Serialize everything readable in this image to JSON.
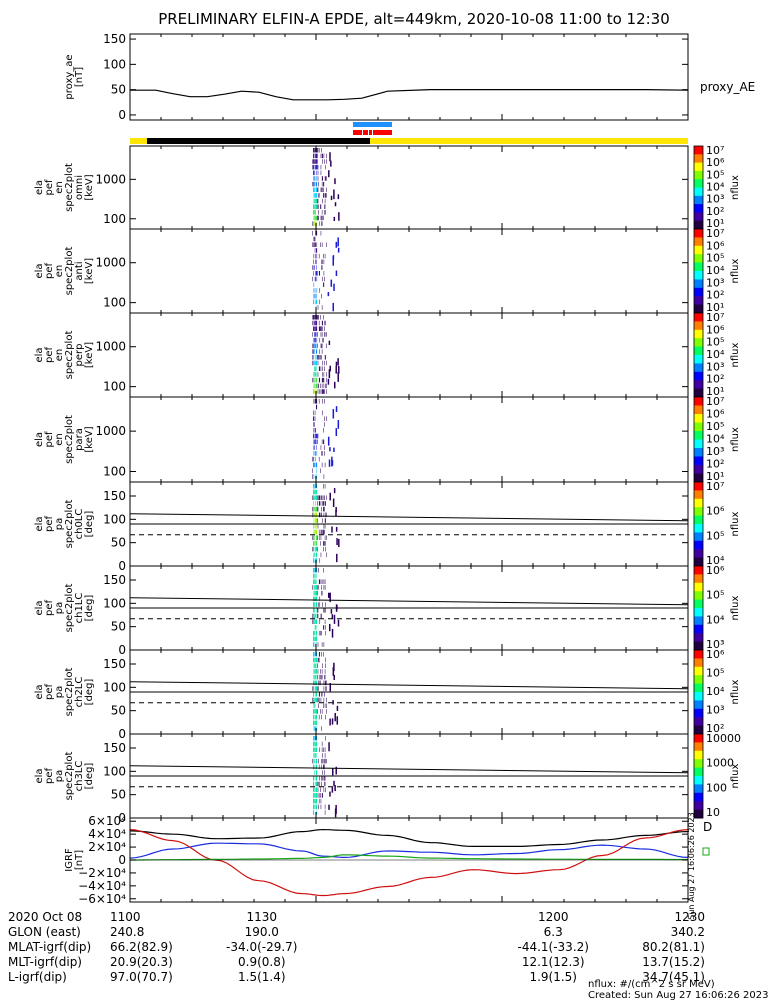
{
  "title": "PRELIMINARY ELFIN-A EPDE, alt=449km, 2020-10-08 11:00 to 12:30",
  "colors": {
    "fg": "#000000",
    "bar_yellow": "#ffe600",
    "bar_black": "#000000",
    "bar_blue": "#1e90ff",
    "bar_red": "#ff0000",
    "grf_x": "#000000",
    "grf_y": "#1a2ee0",
    "grf_z": "#d01010",
    "grf_w": "#18a818"
  },
  "chart_data": [
    {
      "type": "line",
      "name": "proxy_ae",
      "ylabel": [
        "proxy_ae",
        "[nT]"
      ],
      "yticks": [
        "150",
        "100",
        "50",
        "0"
      ],
      "ytick_values": [
        150,
        100,
        50,
        0
      ],
      "ylim": [
        -10,
        160
      ],
      "xlim": [
        1100,
        1230
      ],
      "legend": "proxy_AE",
      "x": [
        1100,
        1106,
        1110,
        1114,
        1118,
        1122,
        1126,
        1130,
        1134,
        1138,
        1142,
        1146,
        1150,
        1154,
        1160,
        1170,
        1180,
        1190,
        1200,
        1210,
        1220,
        1230
      ],
      "y": [
        49,
        49,
        42,
        36,
        36,
        41,
        47,
        45,
        36,
        30,
        30,
        30,
        31,
        33,
        47,
        50,
        50,
        50,
        50,
        50,
        50,
        49
      ]
    },
    {
      "type": "heatmap",
      "name": "en_spec2plot_omni",
      "ylabel": [
        "ela",
        "pef",
        "en",
        "spec2plot",
        "omni",
        "[keV]"
      ],
      "yticks": [
        "1000",
        "100"
      ],
      "ytick_values": [
        1000,
        100
      ],
      "ylog": true,
      "ylim": [
        55,
        7000
      ],
      "zlabel": "nflux",
      "zticks": [
        "10⁷",
        "10⁶",
        "10⁵",
        "10⁴",
        "10³",
        "10²",
        "10¹"
      ],
      "intensity": "high"
    },
    {
      "type": "heatmap",
      "name": "en_spec2plot_anti",
      "ylabel": [
        "ela",
        "pef",
        "en",
        "spec2plot",
        "anti",
        "[keV]"
      ],
      "yticks": [
        "1000",
        "100"
      ],
      "ytick_values": [
        1000,
        100
      ],
      "ylog": true,
      "ylim": [
        55,
        7000
      ],
      "zlabel": "nflux",
      "zticks": [
        "10⁷",
        "10⁶",
        "10⁵",
        "10⁴",
        "10³",
        "10²",
        "10¹"
      ],
      "intensity": "low"
    },
    {
      "type": "heatmap",
      "name": "en_spec2plot_perp",
      "ylabel": [
        "ela",
        "pef",
        "en",
        "spec2plot",
        "perp",
        "[keV]"
      ],
      "yticks": [
        "1000",
        "100"
      ],
      "ytick_values": [
        1000,
        100
      ],
      "ylog": true,
      "ylim": [
        55,
        7000
      ],
      "zlabel": "nflux",
      "zticks": [
        "10⁷",
        "10⁶",
        "10⁵",
        "10⁴",
        "10³",
        "10²",
        "10¹"
      ],
      "intensity": "high"
    },
    {
      "type": "heatmap",
      "name": "en_spec2plot_para",
      "ylabel": [
        "ela",
        "pef",
        "en",
        "spec2plot",
        "para",
        "[keV]"
      ],
      "yticks": [
        "1000",
        "100"
      ],
      "ytick_values": [
        1000,
        100
      ],
      "ylog": true,
      "ylim": [
        55,
        7000
      ],
      "zlabel": "nflux",
      "zticks": [
        "10⁷",
        "10⁶",
        "10⁵",
        "10⁴",
        "10³",
        "10²",
        "10¹"
      ],
      "intensity": "low"
    },
    {
      "type": "heatmap",
      "name": "pa_spec2plot_ch0LC",
      "ylabel": [
        "ela",
        "pef",
        "pa",
        "spec2plot",
        "ch0LC",
        "[deg]"
      ],
      "yticks": [
        "150",
        "100",
        "50",
        "0"
      ],
      "ytick_values": [
        150,
        100,
        50,
        0
      ],
      "ylim": [
        0,
        180
      ],
      "zlabel": "nflux",
      "zticks": [
        "10⁷",
        "10⁶",
        "10⁵",
        "10⁴"
      ],
      "intensity": "high"
    },
    {
      "type": "heatmap",
      "name": "pa_spec2plot_ch1LC",
      "ylabel": [
        "ela",
        "pef",
        "pa",
        "spec2plot",
        "ch1LC",
        "[deg]"
      ],
      "yticks": [
        "150",
        "100",
        "50",
        "0"
      ],
      "ytick_values": [
        150,
        100,
        50,
        0
      ],
      "ylim": [
        0,
        180
      ],
      "zlabel": "nflux",
      "zticks": [
        "10⁶",
        "10⁵",
        "10⁴",
        "10³"
      ],
      "intensity": "medium"
    },
    {
      "type": "heatmap",
      "name": "pa_spec2plot_ch2LC",
      "ylabel": [
        "ela",
        "pef",
        "pa",
        "spec2plot",
        "ch2LC",
        "[deg]"
      ],
      "yticks": [
        "150",
        "100",
        "50",
        "0"
      ],
      "ytick_values": [
        150,
        100,
        50,
        0
      ],
      "ylim": [
        0,
        180
      ],
      "zlabel": "nflux",
      "zticks": [
        "10⁶",
        "10⁵",
        "10⁴",
        "10³",
        "10²"
      ],
      "intensity": "medium"
    },
    {
      "type": "heatmap",
      "name": "pa_spec2plot_ch3LC",
      "ylabel": [
        "ela",
        "pef",
        "pa",
        "spec2plot",
        "ch3LC",
        "[deg]"
      ],
      "yticks": [
        "150",
        "100",
        "50",
        "0"
      ],
      "ytick_values": [
        150,
        100,
        50,
        0
      ],
      "ylim": [
        0,
        180
      ],
      "zlabel": "nflux",
      "zticks": [
        "10000",
        "1000",
        "100",
        "10"
      ],
      "intensity": "medium"
    },
    {
      "type": "line",
      "name": "IGRF",
      "ylabel": [
        "IGRF",
        "[nT]"
      ],
      "yticks": [
        "6×10⁴",
        "4×10⁴",
        "2×10⁴",
        "0",
        "−2×10⁴",
        "−4×10⁴",
        "−6×10⁴"
      ],
      "ytick_values": [
        60000,
        40000,
        20000,
        0,
        -20000,
        -40000,
        -60000
      ],
      "ylim": [
        -65000,
        65000
      ],
      "xlim": [
        1100,
        1230
      ],
      "x": [
        1100,
        1110,
        1120,
        1130,
        1140,
        1145,
        1150,
        1160,
        1170,
        1180,
        1190,
        1200,
        1210,
        1220,
        1230
      ],
      "series": [
        {
          "color": "#000000",
          "values": [
            45000,
            40000,
            33000,
            34000,
            44000,
            47000,
            46000,
            38000,
            27000,
            21000,
            21000,
            24000,
            31000,
            38000,
            44000
          ]
        },
        {
          "color": "#1a2ee0",
          "values": [
            3000,
            17000,
            26000,
            25000,
            14000,
            6000,
            4000,
            14000,
            12000,
            8000,
            10000,
            16000,
            23000,
            17000,
            4000
          ]
        },
        {
          "color": "#d01010",
          "values": [
            47000,
            30000,
            0,
            -32000,
            -52000,
            -55000,
            -52000,
            -41000,
            -27000,
            -15000,
            -21000,
            -15000,
            7000,
            34000,
            47000
          ]
        },
        {
          "color": "#18a818",
          "values": [
            0,
            500,
            1000,
            1500,
            2500,
            4000,
            8000,
            6000,
            3000,
            2000,
            1500,
            1200,
            1000,
            900,
            800
          ]
        }
      ]
    }
  ],
  "colorbar_label": "nflux",
  "timestamp_vertical": "Sun Aug 27 16:06:26 2023",
  "x_axis": {
    "rows": [
      {
        "label": "2020 Oct 08",
        "values": [
          "1100",
          "1130",
          "1200",
          "1230"
        ]
      },
      {
        "label": "GLON (east)",
        "values": [
          "240.8",
          "190.0",
          "6.3",
          "340.2"
        ]
      },
      {
        "label": "MLAT-igrf(dip)",
        "values": [
          "66.2(82.9)",
          "-34.0(-29.7)",
          "-44.1(-33.2)",
          "80.2(81.1)"
        ]
      },
      {
        "label": "MLT-igrf(dip)",
        "values": [
          "20.9(20.3)",
          "0.9(0.8)",
          "12.1(12.3)",
          "13.7(15.2)"
        ]
      },
      {
        "label": "L-igrf(dip)",
        "values": [
          "97.0(70.7)",
          "1.5(1.4)",
          "1.9(1.5)",
          "34.7(45.1)"
        ]
      }
    ]
  },
  "footer": {
    "units": "nflux: #/(cm^2 s sr MeV)",
    "created": "Created: Sun Aug 27 16:06:26 2023"
  }
}
